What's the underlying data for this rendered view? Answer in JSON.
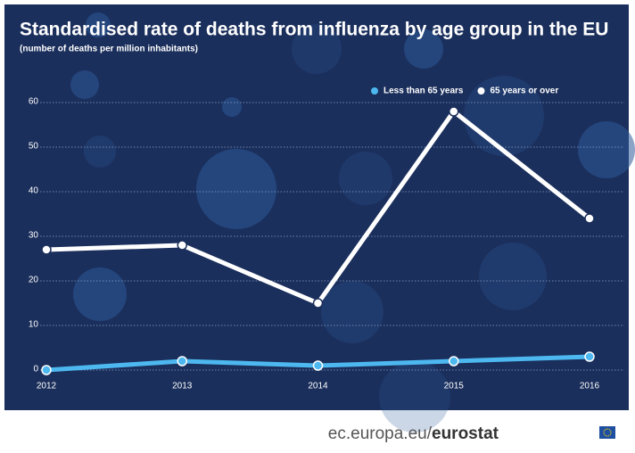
{
  "chart_data": {
    "type": "line",
    "title": "Standardised rate of deaths from influenza by age group in the EU",
    "subtitle": "(number of deaths per million inhabitants)",
    "categories": [
      "2012",
      "2013",
      "2014",
      "2015",
      "2016"
    ],
    "series": [
      {
        "name": "Less than 65 years",
        "color": "#4db8f0",
        "values": [
          0,
          2,
          1,
          2,
          3
        ]
      },
      {
        "name": "65 years or over",
        "color": "#ffffff",
        "values": [
          27,
          28,
          15,
          58,
          34
        ]
      }
    ],
    "ylim": [
      0,
      60
    ],
    "yticks": [
      0,
      10,
      20,
      30,
      40,
      50,
      60
    ],
    "grid": true,
    "legend": "top-right"
  },
  "footer": {
    "site": "ec.europa.eu/",
    "brand": "eurostat"
  }
}
